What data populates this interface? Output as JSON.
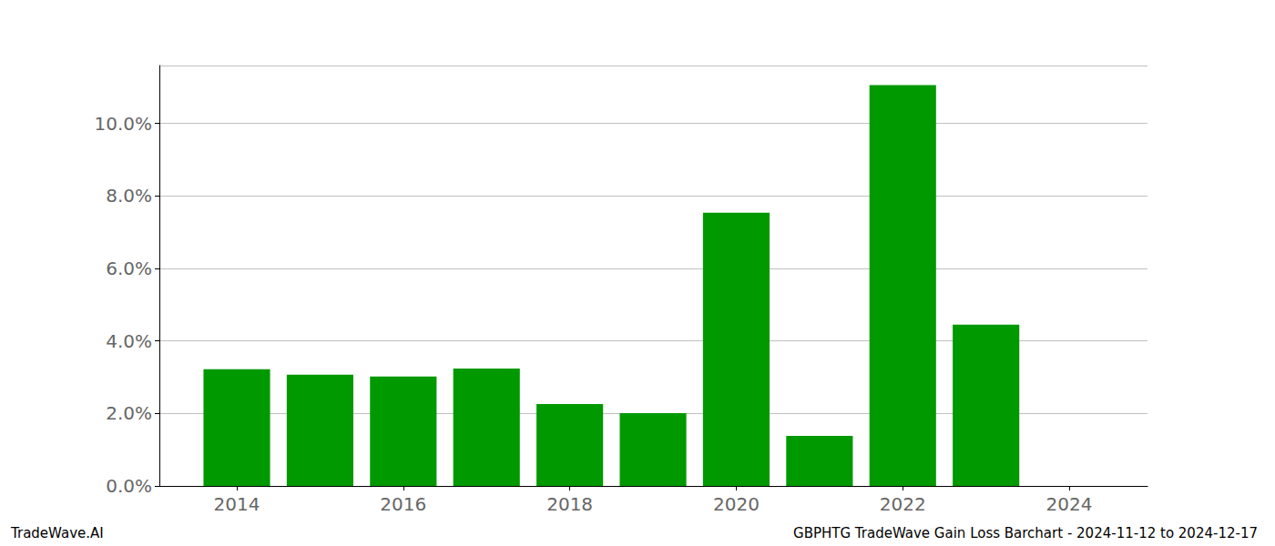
{
  "chart_data": {
    "type": "bar",
    "title": "GBPHTG TradeWave Gain Loss Barchart - 2024-11-12 to 2024-12-17",
    "annotations": [
      "TradeWave.AI"
    ],
    "x": [
      2014,
      2015,
      2016,
      2017,
      2018,
      2019,
      2020,
      2021,
      2022,
      2023
    ],
    "values": [
      3.22,
      3.07,
      3.02,
      3.24,
      2.26,
      2.01,
      7.54,
      1.38,
      11.06,
      4.45
    ],
    "color": "#009900",
    "xlim": [
      2013.07,
      2024.94
    ],
    "xticks": [
      2014,
      2016,
      2018,
      2020,
      2022,
      2024
    ],
    "ylim": [
      0,
      11.6
    ],
    "yticks": [
      {
        "value": 0,
        "label": "0.0%"
      },
      {
        "value": 2,
        "label": "2.0%"
      },
      {
        "value": 4,
        "label": "4.0%"
      },
      {
        "value": 6,
        "label": "6.0%"
      },
      {
        "value": 8,
        "label": "8.0%"
      },
      {
        "value": 10,
        "label": "10.0%"
      }
    ],
    "grid": true
  }
}
